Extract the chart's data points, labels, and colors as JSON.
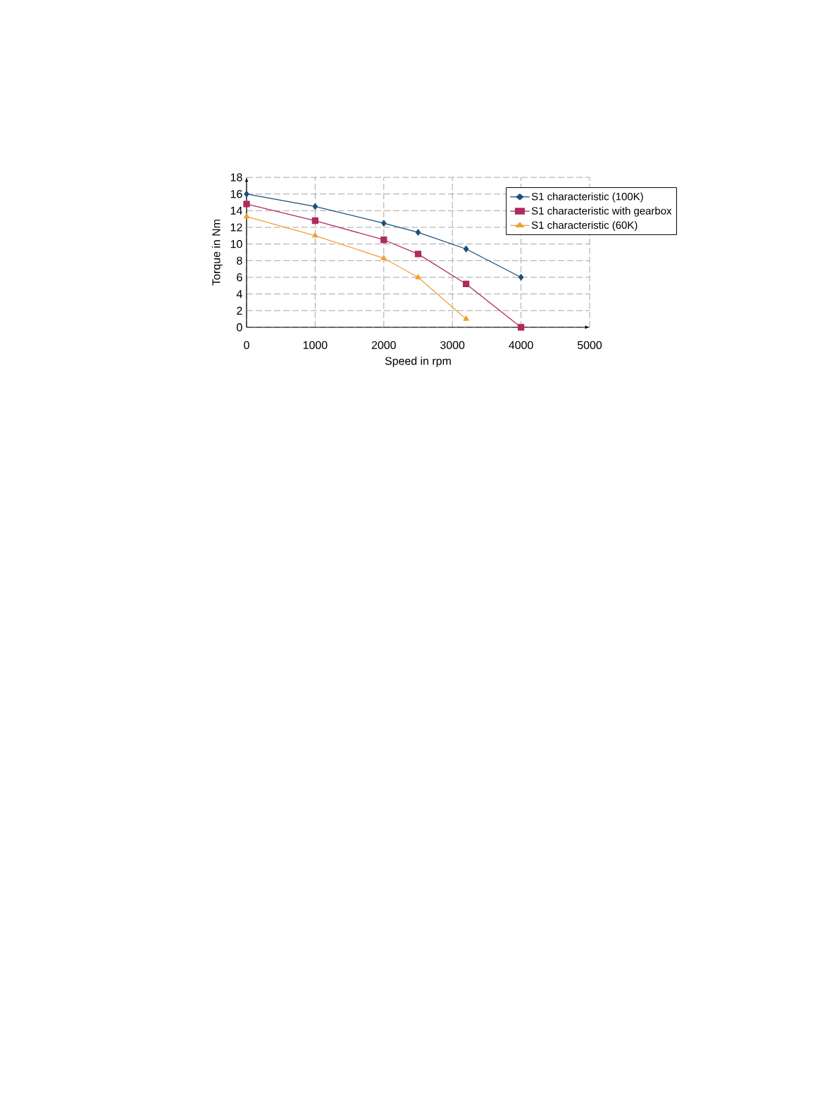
{
  "chart_data": {
    "type": "line",
    "xlabel": "Speed in rpm",
    "ylabel": "Torque in Nm",
    "xlim": [
      0,
      5000
    ],
    "ylim": [
      0,
      18
    ],
    "xticks": [
      0,
      1000,
      2000,
      3000,
      4000,
      5000
    ],
    "yticks": [
      0,
      2,
      4,
      6,
      8,
      10,
      12,
      14,
      16,
      18
    ],
    "grid": true,
    "legend": "top right",
    "series": [
      {
        "name": "S1 characteristic (100K)",
        "color": "#1a4f7a",
        "marker": "diamond",
        "x": [
          0,
          1000,
          2000,
          2500,
          3200,
          4000
        ],
        "values": [
          16,
          14.5,
          12.5,
          11.4,
          9.4,
          6
        ]
      },
      {
        "name": "S1 characteristic with gearbox",
        "color": "#b02a5e",
        "marker": "square",
        "x": [
          0,
          1000,
          2000,
          2500,
          3200,
          4000
        ],
        "values": [
          14.8,
          12.8,
          10.5,
          8.8,
          5.2,
          0
        ]
      },
      {
        "name": "S1 characteristic (60K)",
        "color": "#f0a035",
        "marker": "triangle",
        "x": [
          0,
          1000,
          2000,
          2500,
          3200
        ],
        "values": [
          13.3,
          11,
          8.3,
          6,
          1
        ]
      }
    ]
  }
}
